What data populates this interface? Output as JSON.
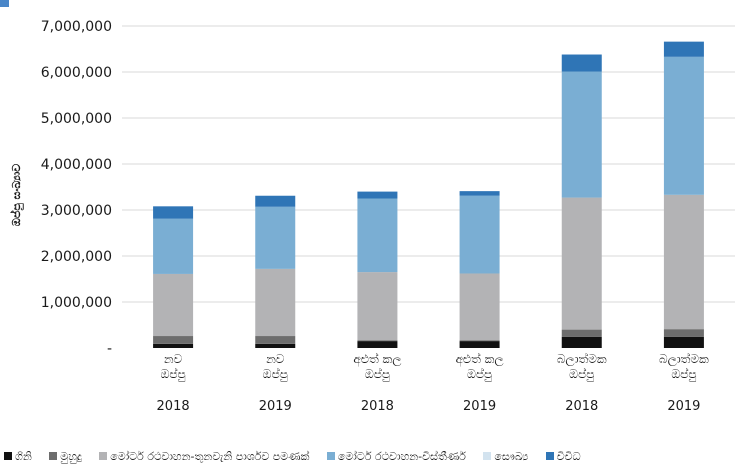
{
  "chart_data": {
    "type": "bar",
    "stacked": true,
    "ylabel": "ඔප්පු සංඛ්‍යාව",
    "ylim": [
      0,
      7000000
    ],
    "y_ticks": [
      {
        "value": 0,
        "label": "-"
      },
      {
        "value": 1000000,
        "label": "1,000,000"
      },
      {
        "value": 2000000,
        "label": "2,000,000"
      },
      {
        "value": 3000000,
        "label": "3,000,000"
      },
      {
        "value": 4000000,
        "label": "4,000,000"
      },
      {
        "value": 5000000,
        "label": "5,000,000"
      },
      {
        "value": 6000000,
        "label": "6,000,000"
      },
      {
        "value": 7000000,
        "label": "7,000,000"
      }
    ],
    "grid": true,
    "legend_position": "bottom",
    "categories": [
      {
        "line1": "නව",
        "line2": "ඔප්පු",
        "year": "2018"
      },
      {
        "line1": "නව",
        "line2": "ඔප්පු",
        "year": "2019"
      },
      {
        "line1": "අළුත් කල",
        "line2": "ඔප්පු",
        "year": "2018"
      },
      {
        "line1": "අළුත් කල",
        "line2": "ඔප්පු",
        "year": "2019"
      },
      {
        "line1": "බලාත්මක",
        "line2": "ඔප්පු",
        "year": "2018"
      },
      {
        "line1": "බලාත්මක",
        "line2": "ඔප්පු",
        "year": "2019"
      }
    ],
    "series": [
      {
        "name": "ගිනි",
        "color": "#111111",
        "values": [
          90000,
          90000,
          150000,
          150000,
          240000,
          240000
        ]
      },
      {
        "name": "මුහුදු",
        "color": "#6d6d6d",
        "values": [
          170000,
          170000,
          20000,
          20000,
          160000,
          170000
        ]
      },
      {
        "name": "මෝටර් රථවාහන-තුනවැනි පාර්ශව පමණක්",
        "color": "#b3b3b5",
        "values": [
          1350000,
          1460000,
          1480000,
          1450000,
          2870000,
          2920000
        ]
      },
      {
        "name": "මෝටර් රථවාහන-විස්තීර්ණ",
        "color": "#7aaed3",
        "values": [
          1200000,
          1350000,
          1600000,
          1690000,
          2740000,
          3000000
        ]
      },
      {
        "name": "සෞඛ්‍ය",
        "color": "#d3e3ef",
        "values": [
          0,
          0,
          0,
          0,
          0,
          0
        ]
      },
      {
        "name": "විවිධ",
        "color": "#2f75b6",
        "values": [
          270000,
          240000,
          150000,
          100000,
          370000,
          330000
        ]
      }
    ]
  }
}
